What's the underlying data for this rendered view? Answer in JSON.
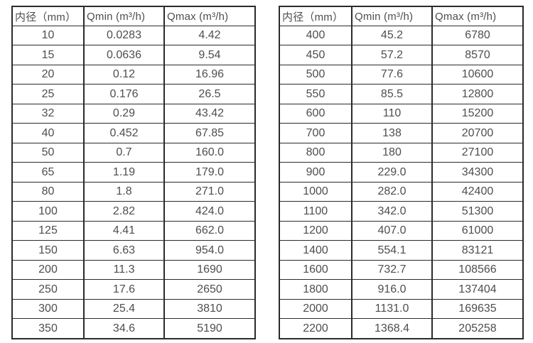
{
  "colors": {
    "background": "#ffffff",
    "border": "#2b2b2b",
    "text": "#4e4e4e"
  },
  "tables": [
    {
      "name": "flow-spec-table-small-diameters",
      "headers": [
        "内径（mm）",
        "Qmin (m³/h)",
        "Qmax (m³/h)"
      ],
      "rows": [
        [
          "10",
          "0.0283",
          "4.42"
        ],
        [
          "15",
          "0.0636",
          "9.54"
        ],
        [
          "20",
          "0.12",
          "16.96"
        ],
        [
          "25",
          "0.176",
          "26.5"
        ],
        [
          "32",
          "0.29",
          "43.42"
        ],
        [
          "40",
          "0.452",
          "67.85"
        ],
        [
          "50",
          "0.7",
          "160.0"
        ],
        [
          "65",
          "1.19",
          "179.0"
        ],
        [
          "80",
          "1.8",
          "271.0"
        ],
        [
          "100",
          "2.82",
          "424.0"
        ],
        [
          "125",
          "4.41",
          "662.0"
        ],
        [
          "150",
          "6.63",
          "954.0"
        ],
        [
          "200",
          "11.3",
          "1690"
        ],
        [
          "250",
          "17.6",
          "2650"
        ],
        [
          "300",
          "25.4",
          "3810"
        ],
        [
          "350",
          "34.6",
          "5190"
        ]
      ]
    },
    {
      "name": "flow-spec-table-large-diameters",
      "headers": [
        "内径（mm）",
        "Qmin (m³/h)",
        "Qmax (m³/h)"
      ],
      "rows": [
        [
          "400",
          "45.2",
          "6780"
        ],
        [
          "450",
          "57.2",
          "8570"
        ],
        [
          "500",
          "77.6",
          "10600"
        ],
        [
          "550",
          "85.5",
          "12800"
        ],
        [
          "600",
          "110",
          "15200"
        ],
        [
          "700",
          "138",
          "20700"
        ],
        [
          "800",
          "180",
          "27100"
        ],
        [
          "900",
          "229.0",
          "34300"
        ],
        [
          "1000",
          "282.0",
          "42400"
        ],
        [
          "1100",
          "342.0",
          "51300"
        ],
        [
          "1200",
          "407.0",
          "61000"
        ],
        [
          "1400",
          "554.1",
          "83121"
        ],
        [
          "1600",
          "732.7",
          "108566"
        ],
        [
          "1800",
          "916.0",
          "137404"
        ],
        [
          "2000",
          "1131.0",
          "169635"
        ],
        [
          "2200",
          "1368.4",
          "205258"
        ]
      ]
    }
  ]
}
